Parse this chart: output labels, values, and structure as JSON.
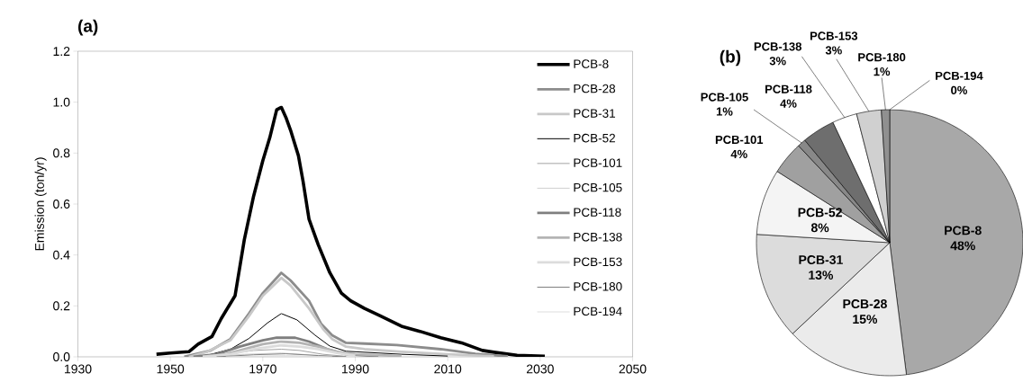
{
  "chart_data": [
    {
      "type": "line",
      "title": "(a)",
      "ylabel": "Emission (ton/yr)",
      "xlim": [
        1930,
        2050
      ],
      "xticks": [
        1930,
        1950,
        1970,
        1990,
        2010,
        2030,
        2050
      ],
      "ylim": [
        0,
        1.2
      ],
      "yticks": [
        {
          "value": 0,
          "label": "0.0"
        },
        0.2,
        0.4,
        0.6,
        0.8,
        {
          "value": 1,
          "label": "1.0"
        },
        1.2
      ],
      "legend": "top right",
      "series": [
        {
          "name": "PCB-8",
          "color": "#000000",
          "x": [
            1947,
            1950,
            1954,
            1956,
            1959,
            1961,
            1964,
            1966,
            1968,
            1970,
            1971.5,
            1973,
            1974,
            1975,
            1976,
            1977.7,
            1978.7,
            1980,
            1982,
            1984.5,
            1987,
            1989,
            1992,
            1995.5,
            2000,
            2004,
            2008.5,
            2013,
            2017.5,
            2020,
            2025,
            2031
          ],
          "values": [
            0.01,
            0.015,
            0.02,
            0.05,
            0.08,
            0.15,
            0.24,
            0.46,
            0.63,
            0.77,
            0.86,
            0.97,
            0.98,
            0.94,
            0.89,
            0.79,
            0.69,
            0.54,
            0.44,
            0.33,
            0.25,
            0.22,
            0.19,
            0.16,
            0.12,
            0.1,
            0.075,
            0.055,
            0.025,
            0.018,
            0.006,
            0.002
          ]
        },
        {
          "name": "PCB-28",
          "color": "#8c8c8c",
          "x": [
            1953,
            1958.6,
            1963,
            1967,
            1970,
            1974,
            1976,
            1980,
            1982.6,
            1985,
            1988,
            1992,
            1999,
            2008.5,
            2016,
            2023
          ],
          "values": [
            0.0,
            0.024,
            0.07,
            0.17,
            0.25,
            0.33,
            0.3,
            0.22,
            0.13,
            0.085,
            0.055,
            0.052,
            0.046,
            0.03,
            0.012,
            0.002
          ]
        },
        {
          "name": "PCB-31",
          "color": "#c8c8c8",
          "x": [
            1954,
            1958,
            1963,
            1967,
            1970,
            1974,
            1976,
            1980,
            1983,
            1985,
            1988,
            1992,
            2000,
            2010,
            2020
          ],
          "values": [
            0.0,
            0.02,
            0.065,
            0.16,
            0.24,
            0.31,
            0.28,
            0.19,
            0.11,
            0.07,
            0.04,
            0.03,
            0.02,
            0.01,
            0.002
          ]
        },
        {
          "name": "PCB-52",
          "color": "#000000",
          "x": [
            1958,
            1963,
            1967,
            1971,
            1974,
            1977.4,
            1981.3,
            1984.5,
            1988,
            2000,
            2010
          ],
          "values": [
            0.006,
            0.03,
            0.072,
            0.133,
            0.17,
            0.145,
            0.085,
            0.042,
            0.022,
            0.01,
            0.003
          ]
        },
        {
          "name": "PCB-101",
          "color": "#999999",
          "x": [
            1955,
            1962,
            1968,
            1974,
            1978,
            1983,
            1988
          ],
          "values": [
            0.0,
            0.01,
            0.025,
            0.03,
            0.025,
            0.01,
            0.002
          ]
        },
        {
          "name": "PCB-105",
          "color": "#c8c8c8",
          "x": [
            1958,
            1966,
            1974,
            1980,
            1986
          ],
          "values": [
            0.0,
            0.01,
            0.015,
            0.008,
            0.001
          ]
        },
        {
          "name": "PCB-118",
          "color": "#7f7f7f",
          "x": [
            1955,
            1960,
            1965,
            1970,
            1973,
            1977,
            1980,
            1984,
            1988,
            1995
          ],
          "values": [
            0.0,
            0.01,
            0.04,
            0.065,
            0.075,
            0.075,
            0.06,
            0.03,
            0.01,
            0.003
          ]
        },
        {
          "name": "PCB-138",
          "color": "#b4b4b4",
          "x": [
            1957,
            1962,
            1966,
            1970,
            1974,
            1978,
            1982,
            1986,
            1990,
            2000
          ],
          "values": [
            0.0,
            0.01,
            0.03,
            0.05,
            0.06,
            0.055,
            0.04,
            0.02,
            0.01,
            0.003
          ]
        },
        {
          "name": "PCB-153",
          "color": "#dcdcdc",
          "x": [
            1957,
            1963,
            1968,
            1974,
            1978,
            1982,
            1986,
            1990
          ],
          "values": [
            0.0,
            0.01,
            0.03,
            0.045,
            0.04,
            0.03,
            0.015,
            0.005
          ]
        },
        {
          "name": "PCB-180",
          "color": "#808080",
          "x": [
            1960,
            1968,
            1975,
            1982,
            1988
          ],
          "values": [
            0.0,
            0.008,
            0.012,
            0.005,
            0.0
          ]
        },
        {
          "name": "PCB-194",
          "color": "#d9d9d9",
          "x": [
            1962,
            1975,
            1985
          ],
          "values": [
            0.0,
            0.005,
            0.0
          ]
        }
      ]
    },
    {
      "type": "pie",
      "title": "(b)",
      "data_labels": true,
      "categories": [
        "PCB-8",
        "PCB-28",
        "PCB-31",
        "PCB-52",
        "PCB-101",
        "PCB-105",
        "PCB-118",
        "PCB-138",
        "PCB-153",
        "PCB-180",
        "PCB-194"
      ],
      "values": [
        48,
        15,
        13,
        8,
        4,
        1,
        4,
        3,
        3,
        1,
        0
      ],
      "value_labels": [
        "48%",
        "15%",
        "13%",
        "8%",
        "4%",
        "1%",
        "4%",
        "3%",
        "3%",
        "1%",
        "0%"
      ],
      "colors": [
        "#a8a8a8",
        "#ebebeb",
        "#dcdcdc",
        "#f4f4f4",
        "#a0a0a0",
        "#888888",
        "#6e6e6e",
        "#ffffff",
        "#d0d0d0",
        "#909090",
        "#000000"
      ]
    }
  ]
}
